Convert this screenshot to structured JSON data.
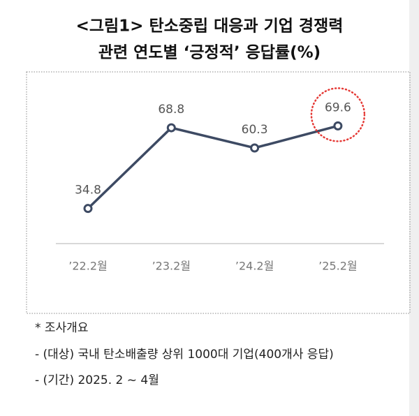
{
  "chart_data": {
    "type": "line",
    "title": [
      "<그림1> 탄소중립 대응과 기업 경쟁력",
      "관련 연도별 ‘긍정적’ 응답률(%)"
    ],
    "categories": [
      "’22.2월",
      "’23.2월",
      "’24.2월",
      "’25.2월"
    ],
    "series": [
      {
        "name": "긍정적 응답률",
        "color": "#3d4a63",
        "values": [
          34.8,
          68.8,
          60.3,
          69.6
        ]
      }
    ],
    "ylim": [
      20,
      80
    ],
    "highlight_color": "#e53935",
    "notes": [
      "* 조사개요",
      "- (대상) 국내 탄소배출량 상위 1000대 기업(400개사 응답)",
      "- (기간) 2025. 2 ~ 4월"
    ]
  }
}
